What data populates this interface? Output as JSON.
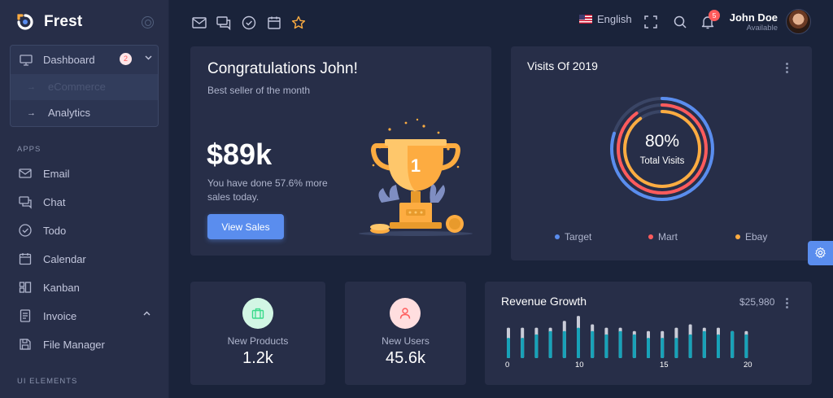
{
  "brand": {
    "name": "Frest"
  },
  "sidebar": {
    "dashboard": {
      "label": "Dashboard",
      "badge": "2"
    },
    "dashboard_sub": [
      {
        "label": "eCommerce"
      },
      {
        "label": "Analytics"
      }
    ],
    "apps_label": "APPS",
    "items": [
      {
        "label": "Email",
        "icon": "mail-icon"
      },
      {
        "label": "Chat",
        "icon": "chat-icon"
      },
      {
        "label": "Todo",
        "icon": "check-circle-icon"
      },
      {
        "label": "Calendar",
        "icon": "calendar-icon"
      },
      {
        "label": "Kanban",
        "icon": "kanban-icon"
      },
      {
        "label": "Invoice",
        "icon": "invoice-icon"
      },
      {
        "label": "File Manager",
        "icon": "save-icon"
      }
    ],
    "ui_elements_label": "UI ELEMENTS"
  },
  "topbar": {
    "language": "English",
    "notification_count": "5",
    "user": {
      "name": "John Doe",
      "status": "Available"
    }
  },
  "congrats": {
    "title": "Congratulations John!",
    "subtitle": "Best seller of the month",
    "amount": "$89k",
    "description": "You have done 57.6% more sales today.",
    "button": "View Sales",
    "trophy_rank": "1"
  },
  "visits": {
    "title": "Visits Of 2019",
    "percent": "80%",
    "center_label": "Total Visits",
    "legend": [
      {
        "label": "Target",
        "color": "#5a8dee"
      },
      {
        "label": "Mart",
        "color": "#ff5b5c"
      },
      {
        "label": "Ebay",
        "color": "#fdac41"
      }
    ]
  },
  "stats": {
    "products": {
      "label": "New Products",
      "value": "1.2k",
      "color": "#39da8a"
    },
    "users": {
      "label": "New Users",
      "value": "45.6k",
      "color": "#ff5b5c"
    }
  },
  "revenue": {
    "title": "Revenue Growth",
    "amount": "$25,980",
    "axis_labels": [
      "0",
      "10",
      "15",
      "20"
    ]
  },
  "chart_data": {
    "type": "bar",
    "title": "Revenue Growth",
    "x": [
      0,
      1,
      2,
      3,
      4,
      5,
      6,
      7,
      8,
      9,
      10,
      11,
      12,
      13,
      14,
      15,
      16,
      17,
      18,
      19
    ],
    "series": [
      {
        "values": [
          18,
          18,
          18,
          18,
          22,
          25,
          20,
          18,
          18,
          16,
          16,
          16,
          18,
          20,
          18,
          18,
          16,
          16,
          16,
          12
        ]
      },
      {
        "values": [
          12,
          12,
          14,
          16,
          16,
          18,
          16,
          14,
          16,
          14,
          12,
          12,
          12,
          14,
          16,
          14,
          16,
          14,
          16,
          10
        ]
      }
    ],
    "colors": [
      "#c9ccd8",
      "#17a2b8"
    ]
  }
}
